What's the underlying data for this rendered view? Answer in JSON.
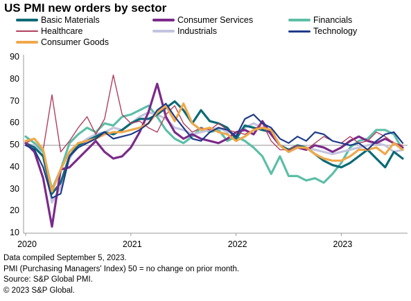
{
  "title": "US PMI new orders by sector",
  "notes": [
    "Data compiled September 5, 2023.",
    "PMI (Purchasing Managers' Index) 50 =  no change on prior month.",
    "Source: S&P Global PMI.",
    "© 2023 S&P Global."
  ],
  "chart_data": {
    "type": "line",
    "ylim": [
      10,
      90
    ],
    "yticks": [
      10,
      20,
      30,
      40,
      50,
      60,
      70,
      80,
      90
    ],
    "xticks": [
      "2020",
      "2021",
      "2022",
      "2023"
    ],
    "reference_line": 50,
    "legend_placement": "top",
    "grid": false,
    "x": [
      "2020-01",
      "2020-02",
      "2020-03",
      "2020-04",
      "2020-05",
      "2020-06",
      "2020-07",
      "2020-08",
      "2020-09",
      "2020-10",
      "2020-11",
      "2020-12",
      "2021-01",
      "2021-02",
      "2021-03",
      "2021-04",
      "2021-05",
      "2021-06",
      "2021-07",
      "2021-08",
      "2021-09",
      "2021-10",
      "2021-11",
      "2021-12",
      "2022-01",
      "2022-02",
      "2022-03",
      "2022-04",
      "2022-05",
      "2022-06",
      "2022-07",
      "2022-08",
      "2022-09",
      "2022-10",
      "2022-11",
      "2022-12",
      "2023-01",
      "2023-02",
      "2023-03",
      "2023-04",
      "2023-05",
      "2023-06",
      "2023-07",
      "2023-08"
    ],
    "series": [
      {
        "name": "Basic Materials",
        "color": "#0a6a76",
        "width": 3.2,
        "values": [
          51,
          49,
          45,
          28,
          33,
          45,
          50,
          52,
          54,
          56,
          55,
          57,
          60,
          62,
          62,
          64,
          67,
          70,
          66,
          60,
          66,
          61,
          60,
          58,
          53,
          59,
          58,
          57,
          56,
          50,
          48,
          50,
          49,
          46,
          43,
          41,
          40,
          42,
          45,
          48,
          44,
          40,
          47,
          44
        ]
      },
      {
        "name": "Consumer Services",
        "color": "#7b2a8a",
        "width": 3.2,
        "values": [
          51,
          47,
          35,
          13,
          39,
          40,
          44,
          48,
          52,
          47,
          44,
          45,
          49,
          56,
          65,
          78,
          63,
          56,
          53,
          55,
          53,
          52,
          51,
          53,
          56,
          57,
          55,
          61,
          55,
          50,
          47,
          49,
          48,
          50,
          49,
          47,
          49,
          52,
          54,
          52,
          51,
          53,
          51,
          49
        ]
      },
      {
        "name": "Financials",
        "color": "#5cbfa7",
        "width": 3.2,
        "values": [
          54,
          51,
          47,
          30,
          39,
          51,
          55,
          58,
          56,
          60,
          59,
          63,
          64,
          66,
          68,
          63,
          57,
          53,
          51,
          54,
          58,
          56,
          57,
          52,
          54,
          52,
          49,
          45,
          37,
          45,
          36,
          36,
          34,
          35,
          33,
          37,
          42,
          49,
          52,
          53,
          57,
          57,
          55,
          48
        ]
      },
      {
        "name": "Healthcare",
        "color": "#b0405e",
        "width": 1.4,
        "values": [
          51,
          53,
          48,
          73,
          47,
          52,
          58,
          63,
          55,
          62,
          82,
          64,
          60,
          61,
          58,
          56,
          64,
          68,
          60,
          56,
          58,
          57,
          60,
          57,
          56,
          55,
          57,
          60,
          52,
          48,
          48,
          50,
          48,
          51,
          54,
          52,
          51,
          54,
          51,
          52,
          56,
          54,
          51,
          50
        ]
      },
      {
        "name": "Industrials",
        "color": "#c3c4df",
        "width": 3.2,
        "values": [
          50,
          50,
          45,
          24,
          31,
          44,
          50,
          53,
          55,
          56,
          58,
          57,
          60,
          63,
          65,
          64,
          62,
          58,
          57,
          55,
          56,
          57,
          58,
          56,
          55,
          58,
          60,
          58,
          55,
          50,
          47,
          50,
          49,
          48,
          47,
          46,
          47,
          48,
          49,
          50,
          51,
          50,
          47,
          48
        ]
      },
      {
        "name": "Technology",
        "color": "#1f3b8a",
        "width": 2.2,
        "values": [
          50,
          48,
          40,
          26,
          28,
          45,
          49,
          51,
          53,
          56,
          53,
          54,
          55,
          57,
          60,
          66,
          69,
          63,
          58,
          53,
          52,
          56,
          58,
          57,
          54,
          62,
          64,
          60,
          58,
          53,
          51,
          54,
          52,
          56,
          55,
          52,
          51,
          50,
          51,
          48,
          52,
          55,
          56,
          51
        ]
      },
      {
        "name": "Consumer Goods",
        "color": "#f0a84a",
        "width": 3.2,
        "values": [
          52,
          53,
          48,
          29,
          39,
          47,
          51,
          52,
          53,
          55,
          56,
          56,
          57,
          58,
          60,
          65,
          68,
          61,
          69,
          60,
          57,
          58,
          56,
          55,
          52,
          54,
          57,
          58,
          57,
          50,
          47,
          49,
          49,
          46,
          44,
          43,
          43,
          45,
          48,
          48,
          49,
          46,
          51,
          48
        ]
      }
    ]
  }
}
